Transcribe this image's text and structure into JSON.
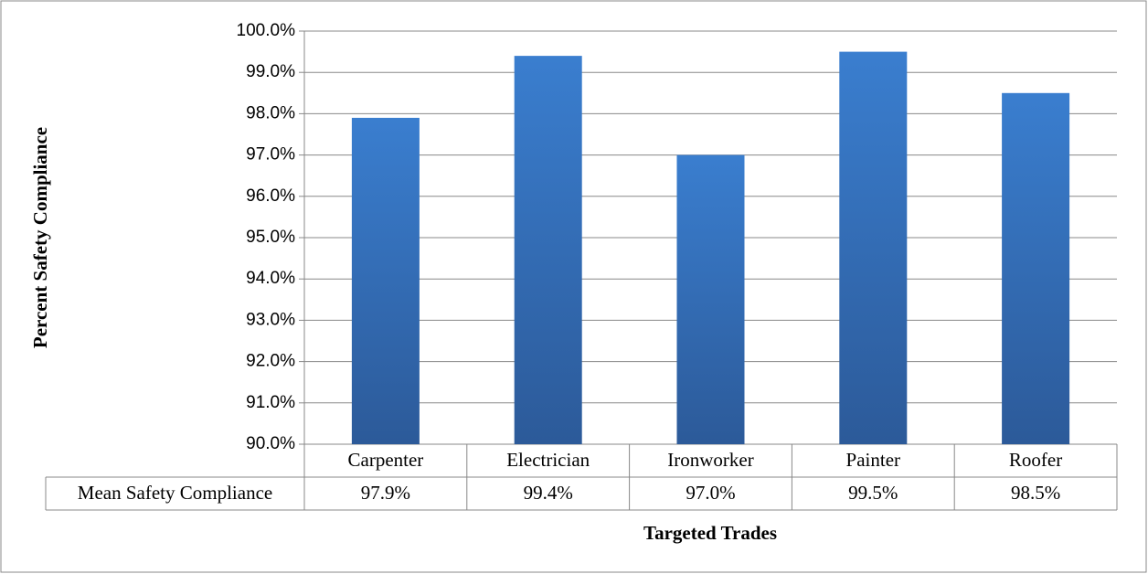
{
  "chart_data": {
    "type": "bar",
    "y_label": "Percent Safety Compliance",
    "x_label": "Targeted Trades",
    "categories": [
      "Carpenter",
      "Electrician",
      "Ironworker",
      "Painter",
      "Roofer"
    ],
    "series": [
      {
        "name": "Mean Safety Compliance",
        "color": "#3a7ecf",
        "values": [
          97.9,
          99.4,
          97.0,
          99.5,
          98.5
        ],
        "value_labels": [
          "97.9%",
          "99.4%",
          "97.0%",
          "99.5%",
          "98.5%"
        ]
      }
    ],
    "ylim": [
      90,
      100
    ],
    "yticks": [
      {
        "value": 90,
        "label": "90.0%"
      },
      {
        "value": 91,
        "label": "91.0%"
      },
      {
        "value": 92,
        "label": "92.0%"
      },
      {
        "value": 93,
        "label": "93.0%"
      },
      {
        "value": 94,
        "label": "94.0%"
      },
      {
        "value": 95,
        "label": "95.0%"
      },
      {
        "value": 96,
        "label": "96.0%"
      },
      {
        "value": 97,
        "label": "97.0%"
      },
      {
        "value": 98,
        "label": "98.0%"
      },
      {
        "value": 99,
        "label": "99.0%"
      },
      {
        "value": 100,
        "label": "100.0%"
      }
    ],
    "grid": true
  }
}
